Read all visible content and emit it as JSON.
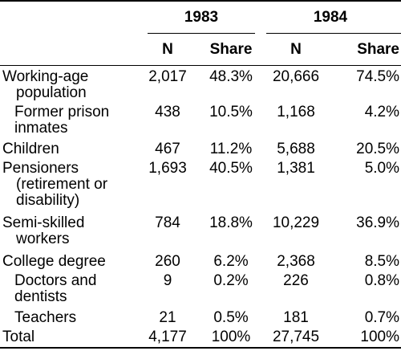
{
  "header": {
    "year_1983": "1983",
    "year_1984": "1984",
    "n_label": "N",
    "share_label": "Share"
  },
  "rows": [
    {
      "label": "Working-age",
      "label_cont": "population",
      "n_1983": "2,017",
      "share_1983": "48.3%",
      "n_1984": "20,666",
      "share_1984": "74.5%"
    },
    {
      "label": "Former prison",
      "label_cont": "inmates",
      "n_1983": "438",
      "share_1983": "10.5%",
      "n_1984": "1,168",
      "share_1984": "4.2%"
    },
    {
      "label": "Children",
      "n_1983": "467",
      "share_1983": "11.2%",
      "n_1984": "5,688",
      "share_1984": "20.5%"
    },
    {
      "label": "Pensioners",
      "label_cont": "(retirement or",
      "label_cont2": "disability)",
      "n_1983": "1,693",
      "share_1983": "40.5%",
      "n_1984": "1,381",
      "share_1984": "5.0%"
    },
    {
      "label": "Semi-skilled",
      "label_cont": "workers",
      "n_1983": "784",
      "share_1983": "18.8%",
      "n_1984": "10,229",
      "share_1984": "36.9%"
    },
    {
      "label": "College degree",
      "n_1983": "260",
      "share_1983": "6.2%",
      "n_1984": "2,368",
      "share_1984": "8.5%"
    },
    {
      "label": "Doctors and",
      "label_cont": "dentists",
      "n_1983": "9",
      "share_1983": "0.2%",
      "n_1984": "226",
      "share_1984": "0.8%"
    },
    {
      "label": "Teachers",
      "n_1983": "21",
      "share_1983": "0.5%",
      "n_1984": "181",
      "share_1984": "0.7%"
    },
    {
      "label": "Total",
      "n_1983": "4,177",
      "share_1983": "100%",
      "n_1984": "27,745",
      "share_1984": "100%"
    }
  ]
}
